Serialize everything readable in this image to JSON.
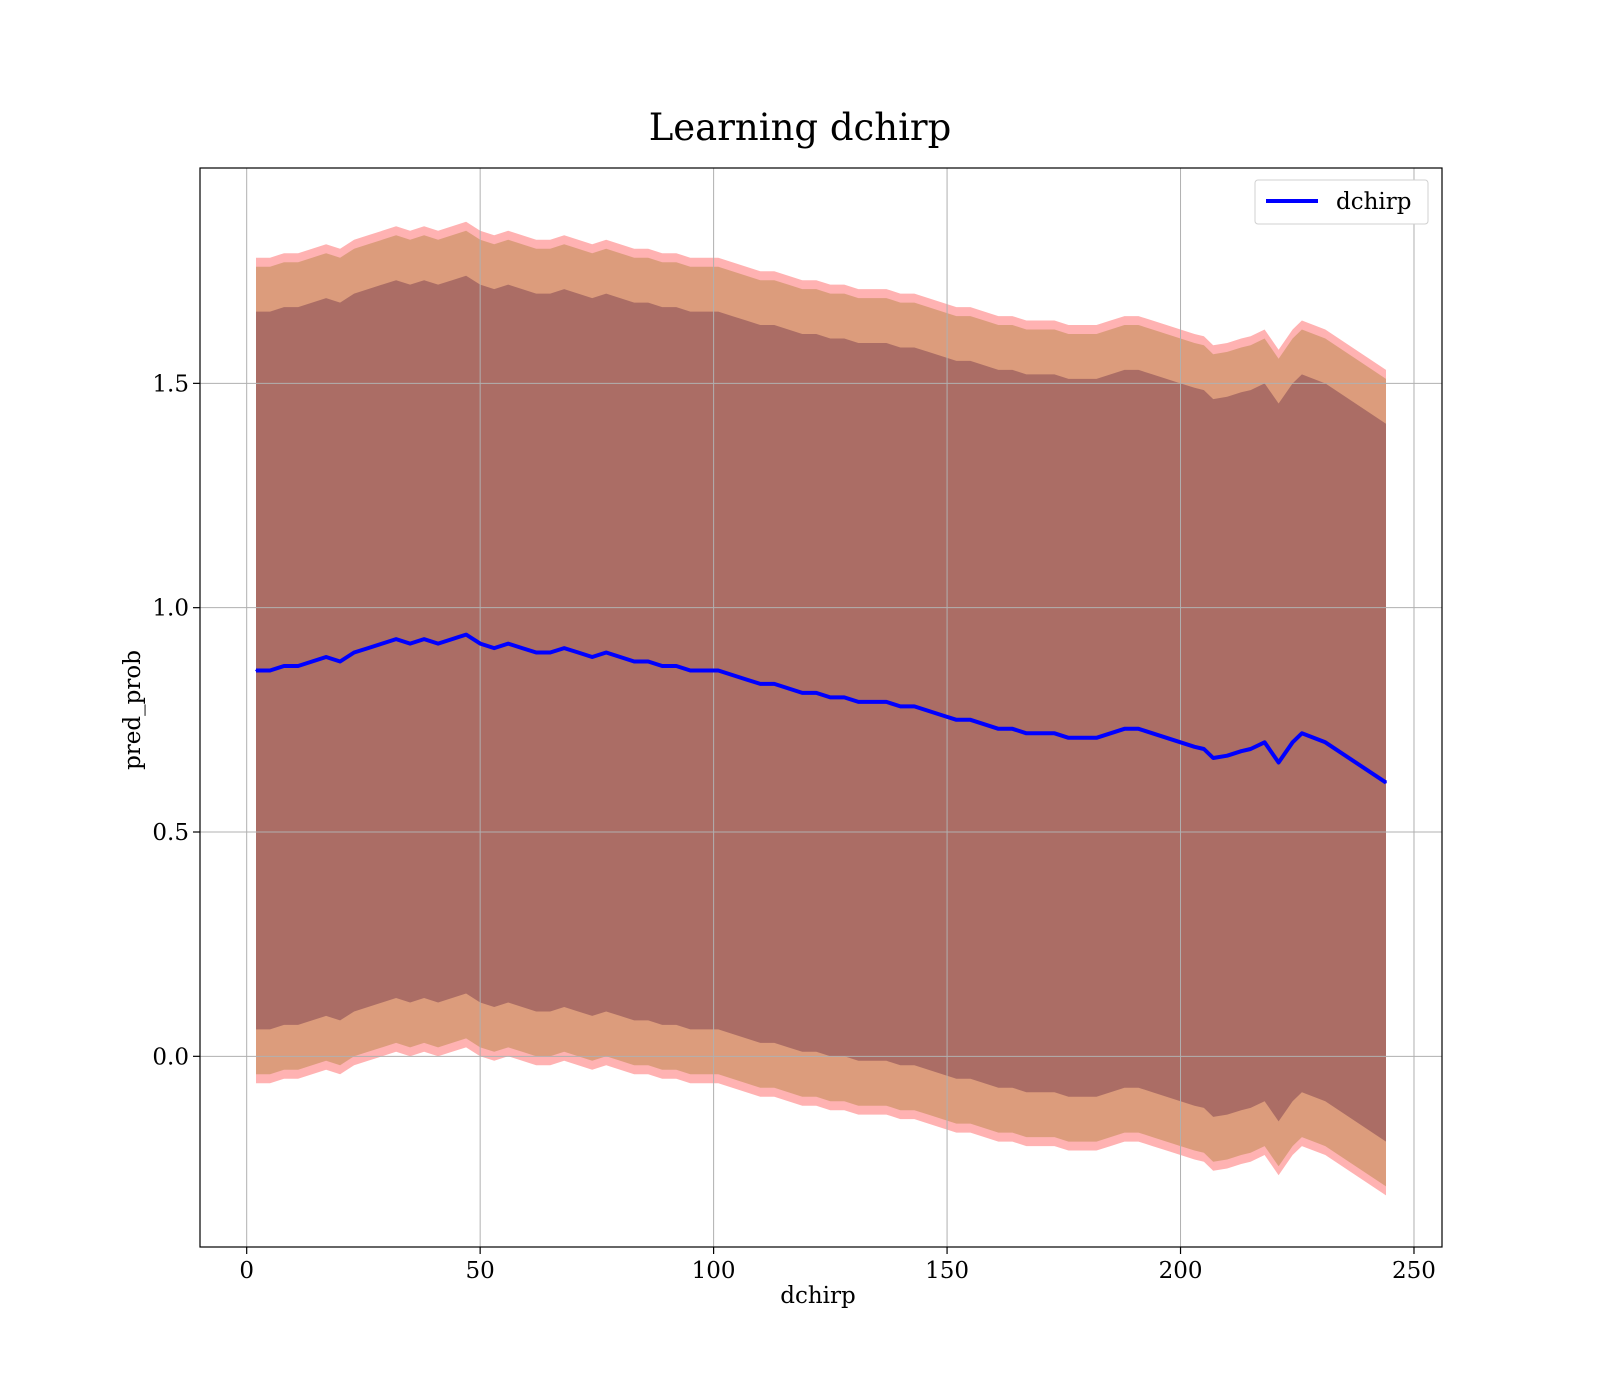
{
  "chart_data": {
    "type": "area",
    "title": "Learning dchirp",
    "xlabel": "dchirp",
    "ylabel": "pred_prob",
    "xlim": [
      -10,
      256
    ],
    "ylim": [
      -0.425,
      1.98
    ],
    "xticks": [
      0,
      50,
      100,
      150,
      200,
      250
    ],
    "yticks": [
      0.0,
      0.5,
      1.0,
      1.5
    ],
    "xtick_labels": [
      "0",
      "50",
      "100",
      "150",
      "200",
      "250"
    ],
    "ytick_labels": [
      "0.0",
      "0.5",
      "1.0",
      "1.5"
    ],
    "grid": true,
    "legend": {
      "position": "top-right",
      "entries": [
        "dchirp"
      ]
    },
    "x": [
      2,
      5,
      8,
      11,
      14,
      17,
      20,
      23,
      26,
      29,
      32,
      35,
      38,
      41,
      44,
      47,
      50,
      53,
      56,
      59,
      62,
      65,
      68,
      71,
      74,
      77,
      80,
      83,
      86,
      89,
      92,
      95,
      98,
      101,
      104,
      107,
      110,
      113,
      116,
      119,
      122,
      125,
      128,
      131,
      134,
      137,
      140,
      143,
      146,
      149,
      152,
      155,
      158,
      161,
      164,
      167,
      170,
      173,
      176,
      179,
      182,
      185,
      188,
      191,
      194,
      197,
      200,
      203,
      205,
      207,
      210,
      213,
      215,
      218,
      221,
      224,
      226,
      231,
      244
    ],
    "series": [
      {
        "name": "dchirp",
        "color": "#0000ff",
        "values": [
          0.86,
          0.86,
          0.87,
          0.87,
          0.88,
          0.89,
          0.88,
          0.9,
          0.91,
          0.92,
          0.93,
          0.92,
          0.93,
          0.92,
          0.93,
          0.94,
          0.92,
          0.91,
          0.92,
          0.91,
          0.9,
          0.9,
          0.91,
          0.9,
          0.89,
          0.9,
          0.89,
          0.88,
          0.88,
          0.87,
          0.87,
          0.86,
          0.86,
          0.86,
          0.85,
          0.84,
          0.83,
          0.83,
          0.82,
          0.81,
          0.81,
          0.8,
          0.8,
          0.79,
          0.79,
          0.79,
          0.78,
          0.78,
          0.77,
          0.76,
          0.75,
          0.75,
          0.74,
          0.73,
          0.73,
          0.72,
          0.72,
          0.72,
          0.71,
          0.71,
          0.71,
          0.72,
          0.73,
          0.73,
          0.72,
          0.71,
          0.7,
          0.69,
          0.685,
          0.665,
          0.67,
          0.68,
          0.685,
          0.7,
          0.655,
          0.7,
          0.72,
          0.7,
          0.61
        ]
      }
    ],
    "bands": [
      {
        "color": "#ff0000",
        "opacity": 0.3,
        "half_width": 0.92
      },
      {
        "color": "#8b6a00",
        "opacity": 0.3,
        "half_width": 0.9
      },
      {
        "color": "#3a0033",
        "opacity": 0.3,
        "half_width": 0.8
      }
    ]
  }
}
